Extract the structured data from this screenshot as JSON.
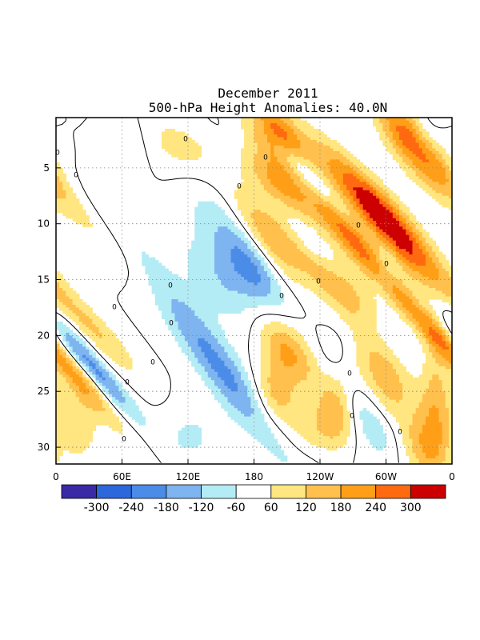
{
  "chart_data": {
    "type": "heatmap",
    "title": "December 2011",
    "subtitle": "500-hPa Height Anomalies: 40.0N",
    "x_tick_labels": [
      "0",
      "60E",
      "120E",
      "180",
      "120W",
      "60W",
      "0"
    ],
    "x_range_deg_east": [
      0,
      360
    ],
    "y_tick_labels": [
      "5",
      "10",
      "15",
      "20",
      "25",
      "30"
    ],
    "y_range_day": [
      1,
      31
    ],
    "y_inverted": true,
    "contour_level_label": "0",
    "colorbar": {
      "tick_labels": [
        "-300",
        "-240",
        "-180",
        "-120",
        "-60",
        "60",
        "120",
        "180",
        "240",
        "300"
      ],
      "bins": [
        {
          "color": "#3a2aa6"
        },
        {
          "color": "#2d67dc"
        },
        {
          "color": "#4a8ce8"
        },
        {
          "color": "#7eb4ef"
        },
        {
          "color": "#b4ecf5"
        },
        {
          "color": "#ffffff"
        },
        {
          "color": "#ffe680"
        },
        {
          "color": "#ffc04d"
        },
        {
          "color": "#ff9f18"
        },
        {
          "color": "#ff6a10"
        },
        {
          "color": "#cc0000"
        }
      ]
    },
    "grid": "dotted",
    "anomaly_field": {
      "background": 0,
      "features": [
        {
          "lon": 20,
          "day": 21,
          "amp": -130,
          "lon_w": 10,
          "day_w": 4.5,
          "tilt": -1.2
        },
        {
          "lon": 40,
          "day": 23.5,
          "amp": -110,
          "lon_w": 8,
          "day_w": 3,
          "tilt": -1.5
        },
        {
          "lon": 40,
          "day": 9,
          "amp": -60,
          "lon_w": 12,
          "day_w": 4,
          "tilt": -1.5
        },
        {
          "lon": 65,
          "day": 3,
          "amp": -70,
          "lon_w": 14,
          "day_w": 2,
          "tilt": 0
        },
        {
          "lon": 150,
          "day": 23,
          "amp": -200,
          "lon_w": 15,
          "day_w": 6,
          "tilt": -1.2
        },
        {
          "lon": 155,
          "day": 15,
          "amp": -120,
          "lon_w": 25,
          "day_w": 3,
          "tilt": -0.8
        },
        {
          "lon": 178,
          "day": 13.5,
          "amp": -160,
          "lon_w": 15,
          "day_w": 3,
          "tilt": -0.8
        },
        {
          "lon": 150,
          "day": 9,
          "amp": -80,
          "lon_w": 20,
          "day_w": 2.5,
          "tilt": -1
        },
        {
          "lon": 175,
          "day": 3,
          "amp": -80,
          "lon_w": 15,
          "day_w": 2,
          "tilt": -1.5
        },
        {
          "lon": 122,
          "day": 29,
          "amp": -70,
          "lon_w": 20,
          "day_w": 2,
          "tilt": 0
        },
        {
          "lon": 228,
          "day": 5.5,
          "amp": -120,
          "lon_w": 8,
          "day_w": 4,
          "tilt": -1.6
        },
        {
          "lon": 235,
          "day": 12,
          "amp": -130,
          "lon_w": 10,
          "day_w": 3,
          "tilt": -1.2
        },
        {
          "lon": 282,
          "day": 19,
          "amp": -110,
          "lon_w": 15,
          "day_w": 2.5,
          "tilt": -1.5
        },
        {
          "lon": 300,
          "day": 14,
          "amp": -60,
          "lon_w": 8,
          "day_w": 1.5,
          "tilt": 0
        },
        {
          "lon": 255,
          "day": 22,
          "amp": -70,
          "lon_w": 12,
          "day_w": 2,
          "tilt": 0
        },
        {
          "lon": 285,
          "day": 27.5,
          "amp": -120,
          "lon_w": 15,
          "day_w": 3,
          "tilt": -1
        },
        {
          "lon": 335,
          "day": 2.5,
          "amp": -60,
          "lon_w": 10,
          "day_w": 2,
          "tilt": 0
        },
        {
          "lon": 245,
          "day": 30.5,
          "amp": -60,
          "lon_w": 20,
          "day_w": 1.5,
          "tilt": 0
        },
        {
          "lon": 35,
          "day": 19.5,
          "amp": 120,
          "lon_w": 12,
          "day_w": 3,
          "tilt": -1.5
        },
        {
          "lon": 8,
          "day": 7,
          "amp": 100,
          "lon_w": 15,
          "day_w": 5,
          "tilt": -1.5
        },
        {
          "lon": 20,
          "day": 27.5,
          "amp": 100,
          "lon_w": 15,
          "day_w": 3,
          "tilt": 0
        },
        {
          "lon": 110,
          "day": 3,
          "amp": 80,
          "lon_w": 25,
          "day_w": 2,
          "tilt": -1
        },
        {
          "lon": 200,
          "day": 2,
          "amp": 280,
          "lon_w": 14,
          "day_w": 2,
          "tilt": -1
        },
        {
          "lon": 200,
          "day": 6,
          "amp": 230,
          "lon_w": 15,
          "day_w": 3,
          "tilt": -1.2
        },
        {
          "lon": 190,
          "day": 11,
          "amp": 210,
          "lon_w": 18,
          "day_w": 3,
          "tilt": -1.2
        },
        {
          "lon": 210,
          "day": 21,
          "amp": 170,
          "lon_w": 15,
          "day_w": 2.5,
          "tilt": -1
        },
        {
          "lon": 200,
          "day": 25,
          "amp": 150,
          "lon_w": 15,
          "day_w": 2.5,
          "tilt": 0
        },
        {
          "lon": 265,
          "day": 10.5,
          "amp": 200,
          "lon_w": 12,
          "day_w": 3,
          "tilt": -1.2
        },
        {
          "lon": 270,
          "day": 17,
          "amp": 160,
          "lon_w": 15,
          "day_w": 3,
          "tilt": -1
        },
        {
          "lon": 285,
          "day": 8,
          "amp": 230,
          "lon_w": 15,
          "day_w": 4,
          "tilt": -1.5
        },
        {
          "lon": 315,
          "day": 12,
          "amp": 210,
          "lon_w": 15,
          "day_w": 4,
          "tilt": -1.2
        },
        {
          "lon": 325,
          "day": 3,
          "amp": 240,
          "lon_w": 15,
          "day_w": 3,
          "tilt": -1
        },
        {
          "lon": 345,
          "day": 20,
          "amp": 200,
          "lon_w": 10,
          "day_w": 6,
          "tilt": -1.5
        },
        {
          "lon": 300,
          "day": 24,
          "amp": 150,
          "lon_w": 18,
          "day_w": 3,
          "tilt": -0.5
        },
        {
          "lon": 345,
          "day": 27,
          "amp": 150,
          "lon_w": 10,
          "day_w": 5,
          "tilt": 0
        },
        {
          "lon": 255,
          "day": 26,
          "amp": 160,
          "lon_w": 12,
          "day_w": 3,
          "tilt": 0
        },
        {
          "lon": 235,
          "day": 29,
          "amp": 100,
          "lon_w": 20,
          "day_w": 2,
          "tilt": 0
        },
        {
          "lon": 330,
          "day": 30,
          "amp": 120,
          "lon_w": 15,
          "day_w": 2,
          "tilt": 0
        },
        {
          "lon": 250,
          "day": 15,
          "amp": 120,
          "lon_w": 12,
          "day_w": 3,
          "tilt": -1
        }
      ]
    }
  }
}
